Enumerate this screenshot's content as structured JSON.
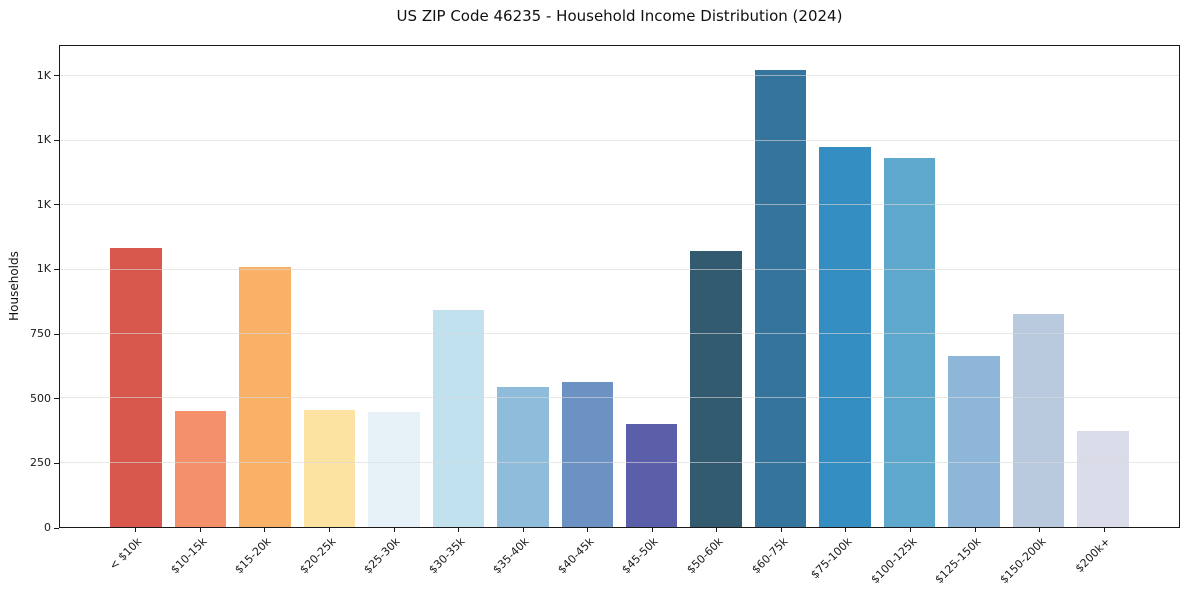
{
  "chart_data": {
    "type": "bar",
    "title": "US ZIP Code 46235 - Household Income Distribution (2024)",
    "xlabel": "",
    "ylabel": "Households",
    "ylim": [
      0,
      1868
    ],
    "grid": "horizontal-only",
    "legend": "none",
    "categories": [
      "< $10k",
      "$10-15k",
      "$15-20k",
      "$20-25k",
      "$25-30k",
      "$30-35k",
      "$35-40k",
      "$40-45k",
      "$45-50k",
      "$50-60k",
      "$60-75k",
      "$75-100k",
      "$100-125k",
      "$125-150k",
      "$150-200k",
      "$200k+"
    ],
    "values": [
      1085,
      452,
      1008,
      456,
      445,
      843,
      543,
      564,
      400,
      1070,
      1775,
      1475,
      1432,
      663,
      826,
      372
    ],
    "bar_colors": [
      "#d9584e",
      "#f4906c",
      "#f9b168",
      "#fce3a2",
      "#e6f2f7",
      "#c0e1ed",
      "#8fbcdb",
      "#6c92c4",
      "#5b5fa9",
      "#335b70",
      "#35749c",
      "#348ec1",
      "#5fa8cd",
      "#8db6d9",
      "#b9cadf",
      "#dbdcea"
    ],
    "y_ticks": [
      {
        "value": 0,
        "label": "0"
      },
      {
        "value": 250,
        "label": "250"
      },
      {
        "value": 500,
        "label": "500"
      },
      {
        "value": 750,
        "label": "750"
      },
      {
        "value": 1000,
        "label": "1K"
      },
      {
        "value": 1250,
        "label": "1K"
      },
      {
        "value": 1500,
        "label": "1K"
      },
      {
        "value": 1750,
        "label": "1K"
      }
    ]
  },
  "colors": {
    "background": "#ffffff",
    "gridline": "#d9d9d9",
    "spine": "#1a1a1a",
    "text": "#111111"
  }
}
